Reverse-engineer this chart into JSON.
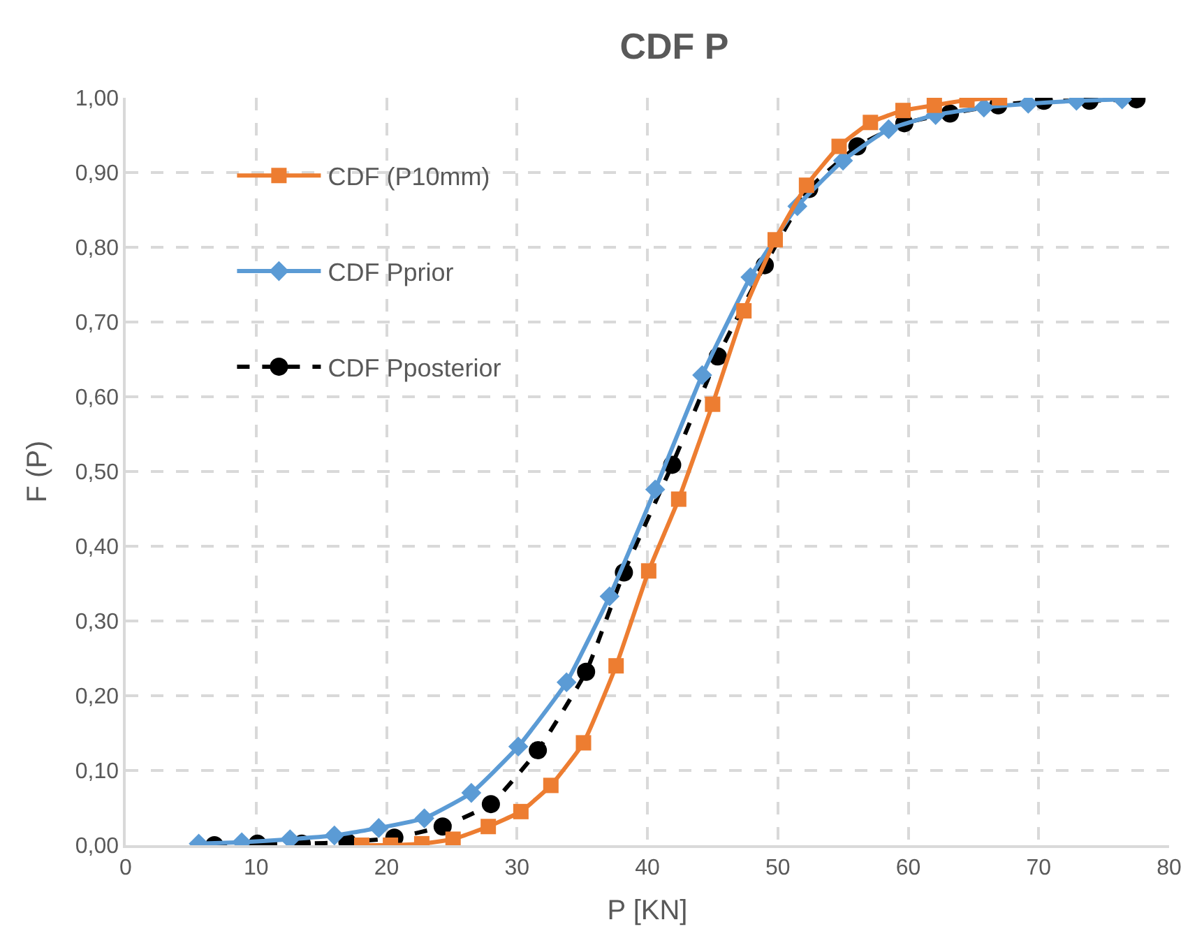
{
  "chart_data": {
    "type": "line",
    "title": "CDF P",
    "xlabel": "P [KN]",
    "ylabel": "F (P)",
    "series": [
      {
        "name": "CDF (P10mm)",
        "color": "#ed7d31",
        "marker": "square",
        "line_style": "solid",
        "x": [
          18.1,
          20.3,
          22.7,
          25.1,
          27.8,
          30.3,
          32.6,
          35.1,
          37.6,
          40.1,
          42.4,
          45.0,
          47.4,
          49.8,
          52.2,
          54.7,
          57.1,
          59.6,
          62.0,
          64.5,
          67.0
        ],
        "values": [
          0.0,
          0.0,
          0.002,
          0.008,
          0.025,
          0.045,
          0.08,
          0.137,
          0.24,
          0.367,
          0.463,
          0.59,
          0.715,
          0.81,
          0.883,
          0.935,
          0.967,
          0.983,
          0.99,
          0.997,
          1.0
        ]
      },
      {
        "name": "CDF Pprior",
        "color": "#5b9bd5",
        "marker": "diamond",
        "line_style": "solid",
        "x": [
          5.6,
          8.9,
          12.6,
          16.0,
          19.4,
          22.9,
          26.5,
          30.1,
          33.8,
          37.1,
          40.6,
          44.2,
          47.9,
          51.5,
          55.0,
          58.5,
          62.1,
          65.8,
          69.2,
          72.9,
          76.4
        ],
        "values": [
          0.002,
          0.004,
          0.008,
          0.013,
          0.023,
          0.036,
          0.07,
          0.132,
          0.218,
          0.333,
          0.476,
          0.629,
          0.76,
          0.855,
          0.916,
          0.958,
          0.977,
          0.987,
          0.992,
          0.996,
          0.998
        ]
      },
      {
        "name": "CDF Pposterior",
        "color": "#000000",
        "marker": "circle",
        "line_style": "dashed",
        "x": [
          6.8,
          10.1,
          13.5,
          17.0,
          20.6,
          24.3,
          28.0,
          31.6,
          35.3,
          38.2,
          41.9,
          45.4,
          49.0,
          52.4,
          56.1,
          59.7,
          63.2,
          66.9,
          70.4,
          73.9,
          77.5
        ],
        "values": [
          0.0,
          0.002,
          0.002,
          0.004,
          0.01,
          0.025,
          0.055,
          0.127,
          0.232,
          0.365,
          0.509,
          0.654,
          0.776,
          0.878,
          0.935,
          0.966,
          0.979,
          0.99,
          0.996,
          0.996,
          0.998
        ]
      }
    ],
    "xlim": [
      0,
      80
    ],
    "xticks": [
      0,
      10,
      20,
      30,
      40,
      50,
      60,
      70,
      80
    ],
    "ylim": [
      0,
      1
    ],
    "yticks": [
      {
        "value": 0,
        "label": "0,00"
      },
      {
        "value": 0.1,
        "label": "0,10"
      },
      {
        "value": 0.2,
        "label": "0,20"
      },
      {
        "value": 0.3,
        "label": "0,30"
      },
      {
        "value": 0.4,
        "label": "0,40"
      },
      {
        "value": 0.5,
        "label": "0,50"
      },
      {
        "value": 0.6,
        "label": "0,60"
      },
      {
        "value": 0.7,
        "label": "0,70"
      },
      {
        "value": 0.8,
        "label": "0,80"
      },
      {
        "value": 0.9,
        "label": "0,90"
      },
      {
        "value": 1,
        "label": "1,00"
      }
    ],
    "grid": true,
    "legend": "top left"
  }
}
